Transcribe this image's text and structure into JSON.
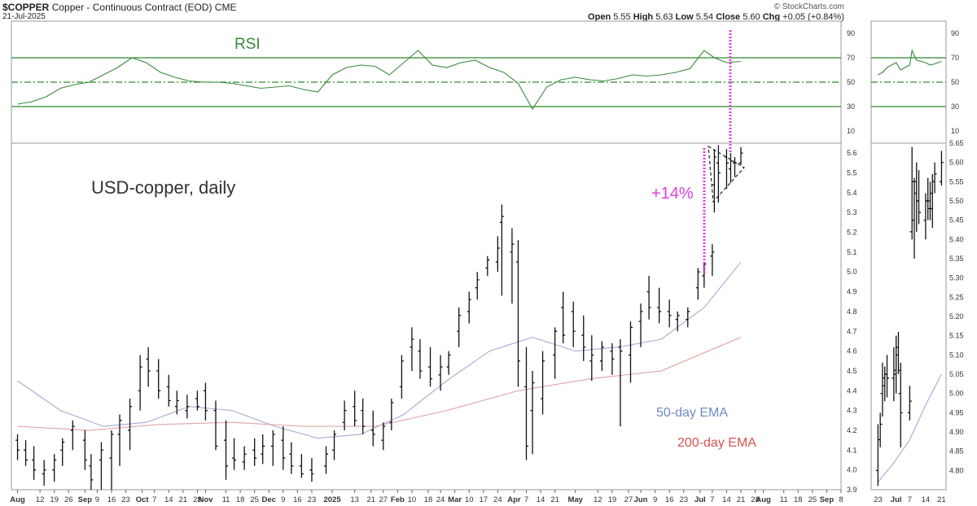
{
  "header": {
    "symbol": "$COPPER",
    "description": "Copper - Continuous Contract (EOD)",
    "exchange": "CME",
    "date": "21-Jul-2025",
    "brand": "© StockCharts.com",
    "ohlc": [
      {
        "label": "Open",
        "value": "5.55"
      },
      {
        "label": "High",
        "value": "5.63"
      },
      {
        "label": "Low",
        "value": "5.54"
      },
      {
        "label": "Close",
        "value": "5.60"
      },
      {
        "label": "Chg",
        "value": "+0.05 (+0.84%)"
      }
    ]
  },
  "annotations": {
    "rsi_label": "RSI",
    "title": "USD-copper, daily",
    "gain": "+14%",
    "ema50_label": "50-day EMA",
    "ema200_label": "200-day EMA"
  },
  "colors": {
    "rsi_line": "#3a8a3a",
    "rsi_levels": "#2e8b2e",
    "bars": "#111111",
    "ema50": "#a7aad6",
    "ema200": "#e2a3a3",
    "ema50_text": "#6e8cc4",
    "ema200_text": "#d9534f",
    "highlight": "#e040e0",
    "pattern": "#222222"
  },
  "chart_data": [
    {
      "type": "line",
      "panel": "RSI",
      "ylim": [
        0,
        100
      ],
      "yticks": [
        10,
        30,
        50,
        70,
        90
      ],
      "levels": [
        30,
        50,
        70
      ],
      "x_start": "2025-07-29",
      "x_end": "2025-09-08",
      "xticks": [
        "Aug",
        "12",
        "19",
        "26",
        "Sep",
        "9",
        "16",
        "23",
        "Oct",
        "7",
        "14",
        "21",
        "28",
        "Nov",
        "11",
        "18",
        "25",
        "Dec",
        "9",
        "16",
        "23",
        "2025",
        "13",
        "21",
        "27",
        "Feb",
        "10",
        "18",
        "24",
        "Mar",
        "10",
        "17",
        "24",
        "Apr",
        "7",
        "14",
        "21",
        "May",
        "12",
        "19",
        "27",
        "Jun",
        "9",
        "16",
        "23",
        "Jul",
        "7",
        "14",
        "21",
        "28",
        "Aug",
        "11",
        "18",
        "25",
        "Sep",
        "8"
      ],
      "x": [
        "2024-08-01",
        "2024-08-08",
        "2024-08-15",
        "2024-08-22",
        "2024-08-29",
        "2024-09-05",
        "2024-09-12",
        "2024-09-19",
        "2024-09-26",
        "2024-10-03",
        "2024-10-10",
        "2024-10-17",
        "2024-10-24",
        "2024-10-31",
        "2024-11-07",
        "2024-11-14",
        "2024-11-21",
        "2024-11-28",
        "2024-12-05",
        "2024-12-12",
        "2024-12-19",
        "2024-12-26",
        "2025-01-02",
        "2025-01-09",
        "2025-01-16",
        "2025-01-23",
        "2025-01-30",
        "2025-02-06",
        "2025-02-13",
        "2025-02-20",
        "2025-02-27",
        "2025-03-06",
        "2025-03-13",
        "2025-03-20",
        "2025-03-27",
        "2025-04-03",
        "2025-04-10",
        "2025-04-17",
        "2025-04-24",
        "2025-05-01",
        "2025-05-08",
        "2025-05-15",
        "2025-05-22",
        "2025-05-29",
        "2025-06-05",
        "2025-06-12",
        "2025-06-19",
        "2025-06-26",
        "2025-07-03",
        "2025-07-08",
        "2025-07-14",
        "2025-07-21"
      ],
      "values": [
        32,
        34,
        38,
        45,
        48,
        50,
        56,
        62,
        70,
        66,
        58,
        54,
        51,
        50,
        50,
        49,
        47,
        45,
        46,
        47,
        44,
        42,
        56,
        62,
        64,
        63,
        56,
        66,
        76,
        64,
        62,
        66,
        68,
        62,
        58,
        49,
        28,
        46,
        52,
        54,
        52,
        51,
        53,
        56,
        55,
        56,
        58,
        61,
        76,
        70,
        66,
        67
      ]
    },
    {
      "type": "bar",
      "style": "ohlc",
      "panel": "price",
      "title": "USD-copper, daily",
      "ylim": [
        3.9,
        5.65
      ],
      "yticks": [
        3.9,
        4.0,
        4.1,
        4.2,
        4.3,
        4.4,
        4.5,
        4.6,
        4.7,
        4.8,
        4.9,
        5.0,
        5.1,
        5.2,
        5.3,
        5.4,
        5.5,
        5.6
      ],
      "x_start": "2025-07-29",
      "x_end": "2025-09-08",
      "x": [
        "2024-08-01",
        "2024-08-05",
        "2024-08-09",
        "2024-08-14",
        "2024-08-19",
        "2024-08-23",
        "2024-08-28",
        "2024-09-03",
        "2024-09-06",
        "2024-09-11",
        "2024-09-16",
        "2024-09-20",
        "2024-09-25",
        "2024-09-30",
        "2024-10-04",
        "2024-10-09",
        "2024-10-14",
        "2024-10-18",
        "2024-10-23",
        "2024-10-28",
        "2024-11-01",
        "2024-11-06",
        "2024-11-11",
        "2024-11-15",
        "2024-11-20",
        "2024-11-25",
        "2024-11-29",
        "2024-12-04",
        "2024-12-09",
        "2024-12-13",
        "2024-12-18",
        "2024-12-23",
        "2024-12-30",
        "2025-01-03",
        "2025-01-08",
        "2025-01-13",
        "2025-01-17",
        "2025-01-22",
        "2025-01-27",
        "2025-01-31",
        "2025-02-05",
        "2025-02-10",
        "2025-02-14",
        "2025-02-19",
        "2025-02-24",
        "2025-02-28",
        "2025-03-05",
        "2025-03-10",
        "2025-03-14",
        "2025-03-19",
        "2025-03-24",
        "2025-03-26",
        "2025-03-31",
        "2025-04-03",
        "2025-04-07",
        "2025-04-10",
        "2025-04-15",
        "2025-04-21",
        "2025-04-25",
        "2025-04-30",
        "2025-05-05",
        "2025-05-09",
        "2025-05-14",
        "2025-05-19",
        "2025-05-23",
        "2025-05-28",
        "2025-06-02",
        "2025-06-06",
        "2025-06-11",
        "2025-06-16",
        "2025-06-20",
        "2025-06-25",
        "2025-06-30",
        "2025-07-03",
        "2025-07-07",
        "2025-07-08",
        "2025-07-10",
        "2025-07-14",
        "2025-07-16",
        "2025-07-18",
        "2025-07-21"
      ],
      "high": [
        4.18,
        4.15,
        4.12,
        4.05,
        4.08,
        4.16,
        4.25,
        4.2,
        4.08,
        4.14,
        4.2,
        4.28,
        4.36,
        4.58,
        4.62,
        4.56,
        4.48,
        4.4,
        4.38,
        4.4,
        4.44,
        4.35,
        4.25,
        4.16,
        4.12,
        4.16,
        4.18,
        4.2,
        4.22,
        4.14,
        4.08,
        4.06,
        4.12,
        4.2,
        4.35,
        4.4,
        4.36,
        4.3,
        4.24,
        4.36,
        4.58,
        4.72,
        4.66,
        4.62,
        4.58,
        4.6,
        4.82,
        4.9,
        5.0,
        5.08,
        5.18,
        5.34,
        5.22,
        5.16,
        4.62,
        4.5,
        4.6,
        4.72,
        4.9,
        4.85,
        4.78,
        4.68,
        4.65,
        4.64,
        4.66,
        4.75,
        4.84,
        4.98,
        4.92,
        4.86,
        4.8,
        4.82,
        5.02,
        5.05,
        5.14,
        5.62,
        5.64,
        5.62,
        5.6,
        5.58,
        5.63
      ],
      "low": [
        4.05,
        4.02,
        3.95,
        3.92,
        3.94,
        4.02,
        4.1,
        4.0,
        3.9,
        3.9,
        3.9,
        4.02,
        4.1,
        4.3,
        4.42,
        4.36,
        4.32,
        4.28,
        4.26,
        4.3,
        4.25,
        4.1,
        3.95,
        4.0,
        4.0,
        4.02,
        4.03,
        4.02,
        4.0,
        3.98,
        3.96,
        3.94,
        3.98,
        4.05,
        4.2,
        4.22,
        4.18,
        4.12,
        4.1,
        4.2,
        4.36,
        4.5,
        4.46,
        4.42,
        4.4,
        4.48,
        4.62,
        4.74,
        4.86,
        4.98,
        5.0,
        4.88,
        4.84,
        4.42,
        4.05,
        4.08,
        4.28,
        4.46,
        4.64,
        4.62,
        4.55,
        4.45,
        4.5,
        4.48,
        4.22,
        4.44,
        4.62,
        4.76,
        4.74,
        4.72,
        4.7,
        4.72,
        4.86,
        4.92,
        4.98,
        5.3,
        5.35,
        5.42,
        5.45,
        5.48,
        5.54
      ],
      "open": [
        4.15,
        4.1,
        4.05,
        3.98,
        4.0,
        4.1,
        4.2,
        4.15,
        4.02,
        4.05,
        4.06,
        4.18,
        4.2,
        4.4,
        4.56,
        4.5,
        4.42,
        4.32,
        4.3,
        4.36,
        4.4,
        4.3,
        4.15,
        4.06,
        4.04,
        4.1,
        4.08,
        4.12,
        4.15,
        4.08,
        4.02,
        4.0,
        4.02,
        4.1,
        4.24,
        4.32,
        4.3,
        4.2,
        4.15,
        4.24,
        4.42,
        4.62,
        4.6,
        4.52,
        4.48,
        4.52,
        4.7,
        4.8,
        4.92,
        5.02,
        5.05,
        5.25,
        5.1,
        5.05,
        4.42,
        4.3,
        4.36,
        4.58,
        4.82,
        4.8,
        4.68,
        4.55,
        4.55,
        4.6,
        4.62,
        4.58,
        4.75,
        4.9,
        4.82,
        4.8,
        4.76,
        4.76,
        4.92,
        4.98,
        5.08,
        5.44,
        5.55,
        5.58,
        5.52,
        5.55,
        5.55
      ],
      "close": [
        4.1,
        4.05,
        4.0,
        4.0,
        4.05,
        4.14,
        4.22,
        4.05,
        3.95,
        4.1,
        4.18,
        4.25,
        4.32,
        4.52,
        4.5,
        4.4,
        4.35,
        4.35,
        4.32,
        4.32,
        4.3,
        4.12,
        4.02,
        4.05,
        4.08,
        4.06,
        4.12,
        4.18,
        4.06,
        4.02,
        3.98,
        3.98,
        4.08,
        4.18,
        4.3,
        4.25,
        4.22,
        4.18,
        4.22,
        4.34,
        4.55,
        4.66,
        4.5,
        4.46,
        4.52,
        4.58,
        4.78,
        4.86,
        4.96,
        5.06,
        5.12,
        5.28,
        5.14,
        4.55,
        4.12,
        4.44,
        4.55,
        4.7,
        4.68,
        4.7,
        4.62,
        4.58,
        4.62,
        4.56,
        4.6,
        4.72,
        4.8,
        4.82,
        4.8,
        4.78,
        4.78,
        4.8,
        5.0,
        5.04,
        5.1,
        5.58,
        5.5,
        5.55,
        5.56,
        5.55,
        5.6
      ]
    },
    {
      "type": "line",
      "panel": "price",
      "series": [
        {
          "name": "50-day EMA",
          "x": [
            "2024-08-01",
            "2024-08-22",
            "2024-09-12",
            "2024-10-03",
            "2024-10-24",
            "2024-11-14",
            "2024-12-05",
            "2024-12-26",
            "2025-01-16",
            "2025-02-06",
            "2025-02-27",
            "2025-03-20",
            "2025-04-10",
            "2025-05-01",
            "2025-05-22",
            "2025-06-12",
            "2025-07-03",
            "2025-07-21"
          ],
          "values": [
            4.45,
            4.3,
            4.22,
            4.24,
            4.32,
            4.3,
            4.22,
            4.16,
            4.18,
            4.28,
            4.45,
            4.6,
            4.67,
            4.6,
            4.62,
            4.66,
            4.82,
            5.05
          ]
        },
        {
          "name": "200-day EMA",
          "x": [
            "2024-08-01",
            "2024-09-05",
            "2024-10-10",
            "2024-11-14",
            "2024-12-19",
            "2025-01-23",
            "2025-02-27",
            "2025-04-03",
            "2025-05-08",
            "2025-06-12",
            "2025-07-21"
          ],
          "values": [
            4.22,
            4.2,
            4.23,
            4.24,
            4.22,
            4.22,
            4.3,
            4.4,
            4.46,
            4.5,
            4.67
          ]
        }
      ]
    },
    {
      "type": "bar",
      "style": "ohlc",
      "panel": "zoom-price",
      "ylim": [
        4.75,
        5.65
      ],
      "yticks": [
        4.8,
        4.85,
        4.9,
        4.95,
        5.0,
        5.05,
        5.1,
        5.15,
        5.2,
        5.25,
        5.3,
        5.35,
        5.4,
        5.45,
        5.5,
        5.55,
        5.6,
        5.65
      ],
      "xticks": [
        "23",
        "Jul",
        "7",
        "14",
        "21"
      ],
      "x_start": "2025-06-23",
      "x_end": "2025-07-21",
      "x": [
        "2025-06-23",
        "2025-06-24",
        "2025-06-25",
        "2025-06-26",
        "2025-06-27",
        "2025-06-30",
        "2025-07-01",
        "2025-07-02",
        "2025-07-03",
        "2025-07-07",
        "2025-07-08",
        "2025-07-09",
        "2025-07-10",
        "2025-07-11",
        "2025-07-14",
        "2025-07-15",
        "2025-07-16",
        "2025-07-17",
        "2025-07-18",
        "2025-07-21"
      ],
      "high": [
        4.92,
        4.95,
        5.08,
        5.07,
        5.1,
        5.12,
        5.15,
        5.16,
        5.08,
        5.02,
        5.64,
        5.56,
        5.6,
        5.58,
        5.52,
        5.56,
        5.55,
        5.57,
        5.6,
        5.63
      ],
      "low": [
        4.76,
        4.86,
        4.94,
        4.98,
        4.99,
        4.98,
        5.0,
        5.05,
        4.86,
        4.93,
        5.4,
        5.35,
        5.42,
        5.44,
        5.4,
        5.45,
        5.45,
        5.43,
        5.52,
        5.54
      ],
      "open": [
        4.8,
        4.88,
        5.0,
        5.02,
        5.05,
        5.04,
        5.06,
        5.1,
        5.0,
        4.95,
        5.42,
        5.45,
        5.55,
        5.5,
        5.45,
        5.5,
        5.5,
        5.48,
        5.55,
        5.55
      ],
      "close": [
        4.88,
        4.92,
        5.04,
        5.05,
        5.04,
        5.05,
        5.12,
        5.06,
        4.95,
        4.98,
        5.55,
        5.52,
        5.5,
        5.47,
        5.5,
        5.48,
        5.52,
        5.55,
        5.57,
        5.6
      ]
    },
    {
      "type": "line",
      "panel": "zoom-price",
      "series": [
        {
          "name": "50-day EMA",
          "x": [
            "2025-06-23",
            "2025-06-30",
            "2025-07-07",
            "2025-07-14",
            "2025-07-21"
          ],
          "values": [
            4.77,
            4.82,
            4.88,
            4.97,
            5.05
          ]
        }
      ]
    },
    {
      "type": "line",
      "panel": "zoom-RSI",
      "ylim": [
        0,
        100
      ],
      "yticks": [
        10,
        30,
        50,
        70,
        90
      ],
      "levels": [
        30,
        50,
        70
      ],
      "x": [
        "2025-06-23",
        "2025-06-25",
        "2025-06-27",
        "2025-07-01",
        "2025-07-03",
        "2025-07-07",
        "2025-07-08",
        "2025-07-10",
        "2025-07-14",
        "2025-07-16",
        "2025-07-18",
        "2025-07-21"
      ],
      "values": [
        56,
        58,
        62,
        66,
        60,
        64,
        76,
        68,
        66,
        64,
        65,
        67
      ]
    }
  ]
}
